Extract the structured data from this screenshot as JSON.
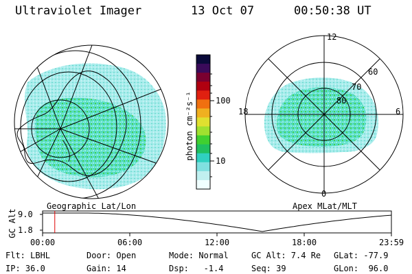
{
  "header": {
    "instrument": "Ultraviolet Imager",
    "date": "13 Oct 07",
    "time": "00:50:38 UT"
  },
  "left_panel": {
    "label": "Geographic Lat/Lon"
  },
  "right_panel": {
    "label": "Apex MLat/MLT",
    "mlt_labels": [
      "12",
      "18",
      "6",
      "0"
    ],
    "mlat_labels": [
      "60",
      "70",
      "80"
    ]
  },
  "colorbar": {
    "unit_label": "photon cm⁻²s⁻¹",
    "ticks": [
      "100",
      "10"
    ],
    "colors": [
      "#0a0a3a",
      "#3a0a5a",
      "#7a0030",
      "#b00010",
      "#e02010",
      "#f07010",
      "#f0b020",
      "#e0e030",
      "#a0e030",
      "#40d030",
      "#20c060",
      "#30d0c0",
      "#80e0e0",
      "#c0f0f0",
      "#f0ffff"
    ]
  },
  "altitude_plot": {
    "ylabel": "GC Alt",
    "yticks": [
      "9.0",
      "1.8"
    ],
    "xticks": [
      "00:00",
      "06:00",
      "12:00",
      "18:00",
      "23:59"
    ],
    "ylim": [
      1.8,
      9.0
    ],
    "current_time_fraction": 0.035,
    "marker_color": "#e00000"
  },
  "info": {
    "filter": "Flt: LBHL",
    "ip": "IP: 36.0",
    "door": "Door: Open",
    "gain": "Gain: 14",
    "mode": "Mode: Normal",
    "dsp": "Dsp:   -1.4",
    "gc_alt": "GC Alt: 7.4 Re",
    "seq": "Seq: 39",
    "glat": "GLat: -77.9",
    "glon": "GLon:  96.0"
  }
}
